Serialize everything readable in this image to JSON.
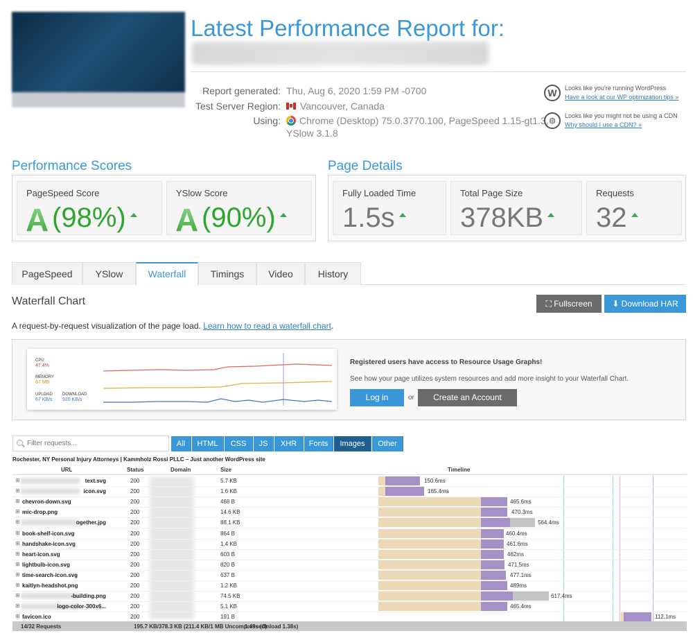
{
  "header": {
    "title": "Latest Performance Report for:",
    "report_generated_label": "Report generated:",
    "report_generated_value": "Thu, Aug 6, 2020 1:59 PM -0700",
    "region_label": "Test Server Region:",
    "region_value": "Vancouver, Canada",
    "using_label": "Using:",
    "using_value_1": "Chrome (Desktop) 75.0.3770.100, PageSpeed 1.15-gt1.3,",
    "using_value_2": "YSlow 3.1.8"
  },
  "hints": {
    "wp_text": "Looks like you're running WordPress",
    "wp_link": "Have a look at our WP optimization tips »",
    "cdn_text": "Looks like you might not be using a CDN",
    "cdn_link": "Why should I use a CDN? »"
  },
  "performance_scores": {
    "title": "Performance Scores",
    "pagespeed_label": "PageSpeed Score",
    "pagespeed_grade": "A",
    "pagespeed_pct": "(98%)",
    "yslow_label": "YSlow Score",
    "yslow_grade": "A",
    "yslow_pct": "(90%)"
  },
  "page_details": {
    "title": "Page Details",
    "loaded_label": "Fully Loaded Time",
    "loaded_value": "1.5s",
    "size_label": "Total Page Size",
    "size_value": "378KB",
    "requests_label": "Requests",
    "requests_value": "32"
  },
  "tabs": [
    "PageSpeed",
    "YSlow",
    "Waterfall",
    "Timings",
    "Video",
    "History"
  ],
  "waterfall": {
    "title": "Waterfall Chart",
    "fullscreen": "Fullscreen",
    "download_har": "Download HAR",
    "desc": "A request-by-request visualization of the page load.",
    "desc_link": "Learn how to read a waterfall chart"
  },
  "promo": {
    "cpu_label": "CPU",
    "cpu_value": "47.4%",
    "memory_label": "MEMORY",
    "memory_value": "67 MB",
    "upload_label": "UPLOAD",
    "upload_value": "67 KB/s",
    "download_label": "DOWNLOAD",
    "download_value": "920 KB/s",
    "heading": "Registered users have access to Resource Usage Graphs!",
    "body": "See how your page utilizes system resources and add more insight to your Waterfall Chart.",
    "login": "Log in",
    "or": "or",
    "create": "Create an Account",
    "colors": {
      "cpu": "#e06666",
      "memory": "#e0b040",
      "upload": "#3a78c8"
    }
  },
  "filter": {
    "placeholder": "Filter requests...",
    "buttons": [
      "All",
      "HTML",
      "CSS",
      "JS",
      "XHR",
      "Fonts",
      "Images",
      "Other"
    ],
    "selected": "Images"
  },
  "table": {
    "site_title": "Rochester, NY Personal Injury Attorneys | Kammholz Rossi PLLC – Just another WordPress site",
    "headers": {
      "url": "URL",
      "status": "Status",
      "domain": "Domain",
      "size": "Size",
      "timeline": "Timeline"
    },
    "rows": [
      {
        "name": "text.svg",
        "blurred_prefix": true,
        "status": "200",
        "size": "5.7 KB",
        "time": "150.6ms"
      },
      {
        "name": "icon.svg",
        "blurred_prefix": true,
        "status": "200",
        "size": "1.6 KB",
        "time": "165.4ms"
      },
      {
        "name": "chevron-down.svg",
        "blurred_prefix": false,
        "status": "200",
        "size": "468 B",
        "time": "465.6ms"
      },
      {
        "name": "mic-drop.png",
        "blurred_prefix": false,
        "status": "200",
        "size": "14.6 KB",
        "time": "470.3ms"
      },
      {
        "name": "ogether.jpg",
        "blurred_prefix": true,
        "status": "200",
        "size": "88.1 KB",
        "time": "564.4ms"
      },
      {
        "name": "book-shelf-icon.svg",
        "blurred_prefix": false,
        "status": "200",
        "size": "864 B",
        "time": "460.4ms"
      },
      {
        "name": "handshake-icon.svg",
        "blurred_prefix": false,
        "status": "200",
        "size": "1.4 KB",
        "time": "461.6ms"
      },
      {
        "name": "heart-icon.svg",
        "blurred_prefix": false,
        "status": "200",
        "size": "603 B",
        "time": "462ms"
      },
      {
        "name": "lightbulb-icon.svg",
        "blurred_prefix": false,
        "status": "200",
        "size": "820 B",
        "time": "471.5ms"
      },
      {
        "name": "time-search-icon.svg",
        "blurred_prefix": false,
        "status": "200",
        "size": "637 B",
        "time": "477.1ms"
      },
      {
        "name": "kaitlyn-headshot.png",
        "blurred_prefix": false,
        "status": "200",
        "size": "1.2 KB",
        "time": "489ms"
      },
      {
        "name": "-building.png",
        "blurred_prefix": true,
        "status": "200",
        "size": "74.5 KB",
        "time": "617.4ms"
      },
      {
        "name": "logo-color-300x6...",
        "blurred_prefix": true,
        "status": "200",
        "size": "5.1 KB",
        "time": "465.4ms"
      },
      {
        "name": "favicon.ico",
        "blurred_prefix": false,
        "status": "200",
        "size": "191 B",
        "time": "112.1ms"
      }
    ],
    "footer": {
      "requests": "14/32 Requests",
      "size": "195.7 KB/378.3 KB  (211.4 KB/1 MB Uncompressed)",
      "time": "1.49s  (Onload 1.38s)"
    }
  }
}
